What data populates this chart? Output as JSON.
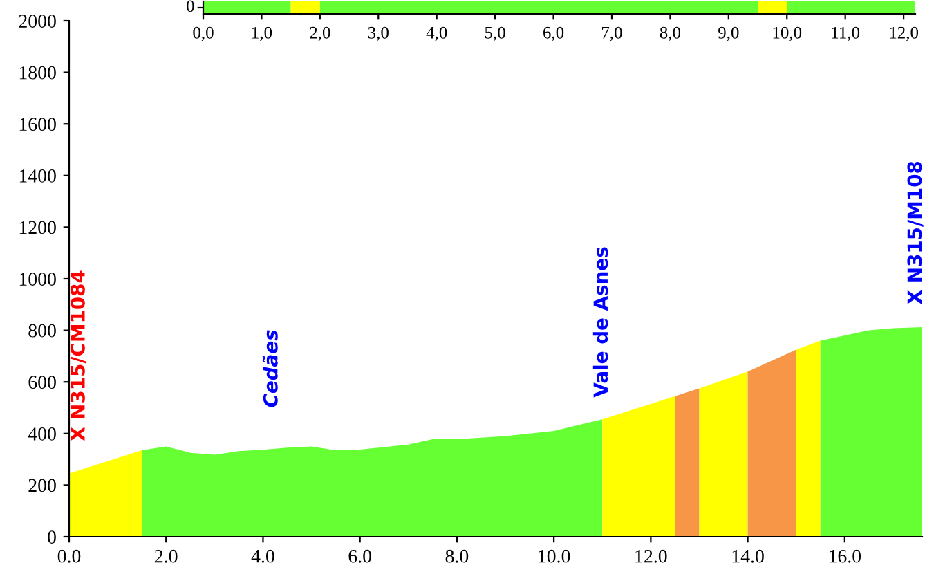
{
  "chart_data": [
    {
      "type": "bar",
      "orientation": "horizontal",
      "stacked": true,
      "categories": [
        null
      ],
      "xlim": [
        0,
        12.2
      ],
      "xticks": [
        {
          "value": 0,
          "label": "0,0"
        },
        {
          "value": 1,
          "label": "1,0"
        },
        {
          "value": 2,
          "label": "2,0"
        },
        {
          "value": 3,
          "label": "3,0"
        },
        {
          "value": 4,
          "label": "4,0"
        },
        {
          "value": 5,
          "label": "5,0"
        },
        {
          "value": 6,
          "label": "6,0"
        },
        {
          "value": 7,
          "label": "7,0"
        },
        {
          "value": 8,
          "label": "8,0"
        },
        {
          "value": 9,
          "label": "9,0"
        },
        {
          "value": 10,
          "label": "10,0"
        },
        {
          "value": 11,
          "label": "11,0"
        },
        {
          "value": 12,
          "label": "12,0"
        }
      ],
      "series": [
        {
          "color": "#66ff33",
          "values": [
            1.5
          ]
        },
        {
          "color": "#ffff00",
          "values": [
            0.5
          ]
        },
        {
          "color": "#66ff33",
          "values": [
            7.5
          ]
        },
        {
          "color": "#ffff00",
          "values": [
            0.5
          ]
        },
        {
          "color": "#66ff33",
          "values": [
            2.2
          ]
        }
      ],
      "annotations": [
        "0"
      ],
      "grid": false
    },
    {
      "type": "area",
      "xlim": [
        0,
        17.6
      ],
      "ylim": [
        0,
        2000
      ],
      "xticks": [
        {
          "value": 0,
          "label": "0.0"
        },
        {
          "value": 2,
          "label": "2.0"
        },
        {
          "value": 4,
          "label": "4.0"
        },
        {
          "value": 6,
          "label": "6.0"
        },
        {
          "value": 8,
          "label": "8.0"
        },
        {
          "value": 10,
          "label": "10.0"
        },
        {
          "value": 12,
          "label": "12.0"
        },
        {
          "value": 14,
          "label": "14.0"
        },
        {
          "value": 16,
          "label": "16.0"
        }
      ],
      "yticks": [
        0,
        200,
        400,
        600,
        800,
        1000,
        1200,
        1400,
        1600,
        1800,
        2000
      ],
      "series": [
        {
          "color": "#ffff00",
          "x": [
            0,
            1.5
          ],
          "values": [
            245,
            335
          ]
        },
        {
          "color": "#66ff33",
          "x": [
            1.5,
            2.0,
            2.5,
            3.0,
            3.5,
            4.0,
            4.5,
            5.0,
            5.5,
            6.0,
            7.0,
            7.5,
            8.0,
            9.0,
            10.0,
            11.0
          ],
          "values": [
            335,
            350,
            325,
            318,
            332,
            337,
            345,
            350,
            335,
            338,
            357,
            378,
            378,
            390,
            410,
            455
          ]
        },
        {
          "color": "#ffff00",
          "x": [
            11.0,
            12.0,
            12.5
          ],
          "values": [
            455,
            515,
            545
          ]
        },
        {
          "color": "#f79646",
          "x": [
            12.5,
            13.0
          ],
          "values": [
            545,
            575
          ]
        },
        {
          "color": "#ffff00",
          "x": [
            13.0,
            14.0
          ],
          "values": [
            575,
            640
          ]
        },
        {
          "color": "#f79646",
          "x": [
            14.0,
            15.0
          ],
          "values": [
            640,
            725
          ]
        },
        {
          "color": "#ffff00",
          "x": [
            15.0,
            15.5
          ],
          "values": [
            725,
            760
          ]
        },
        {
          "color": "#66ff33",
          "x": [
            15.5,
            16.0,
            16.5,
            17.0,
            17.6
          ],
          "values": [
            760,
            780,
            800,
            808,
            812
          ]
        }
      ],
      "annotations": [
        "X N315/CM1084",
        "Cedães",
        "Vale de Asnes",
        "X N315/M108"
      ],
      "grid": false
    }
  ]
}
